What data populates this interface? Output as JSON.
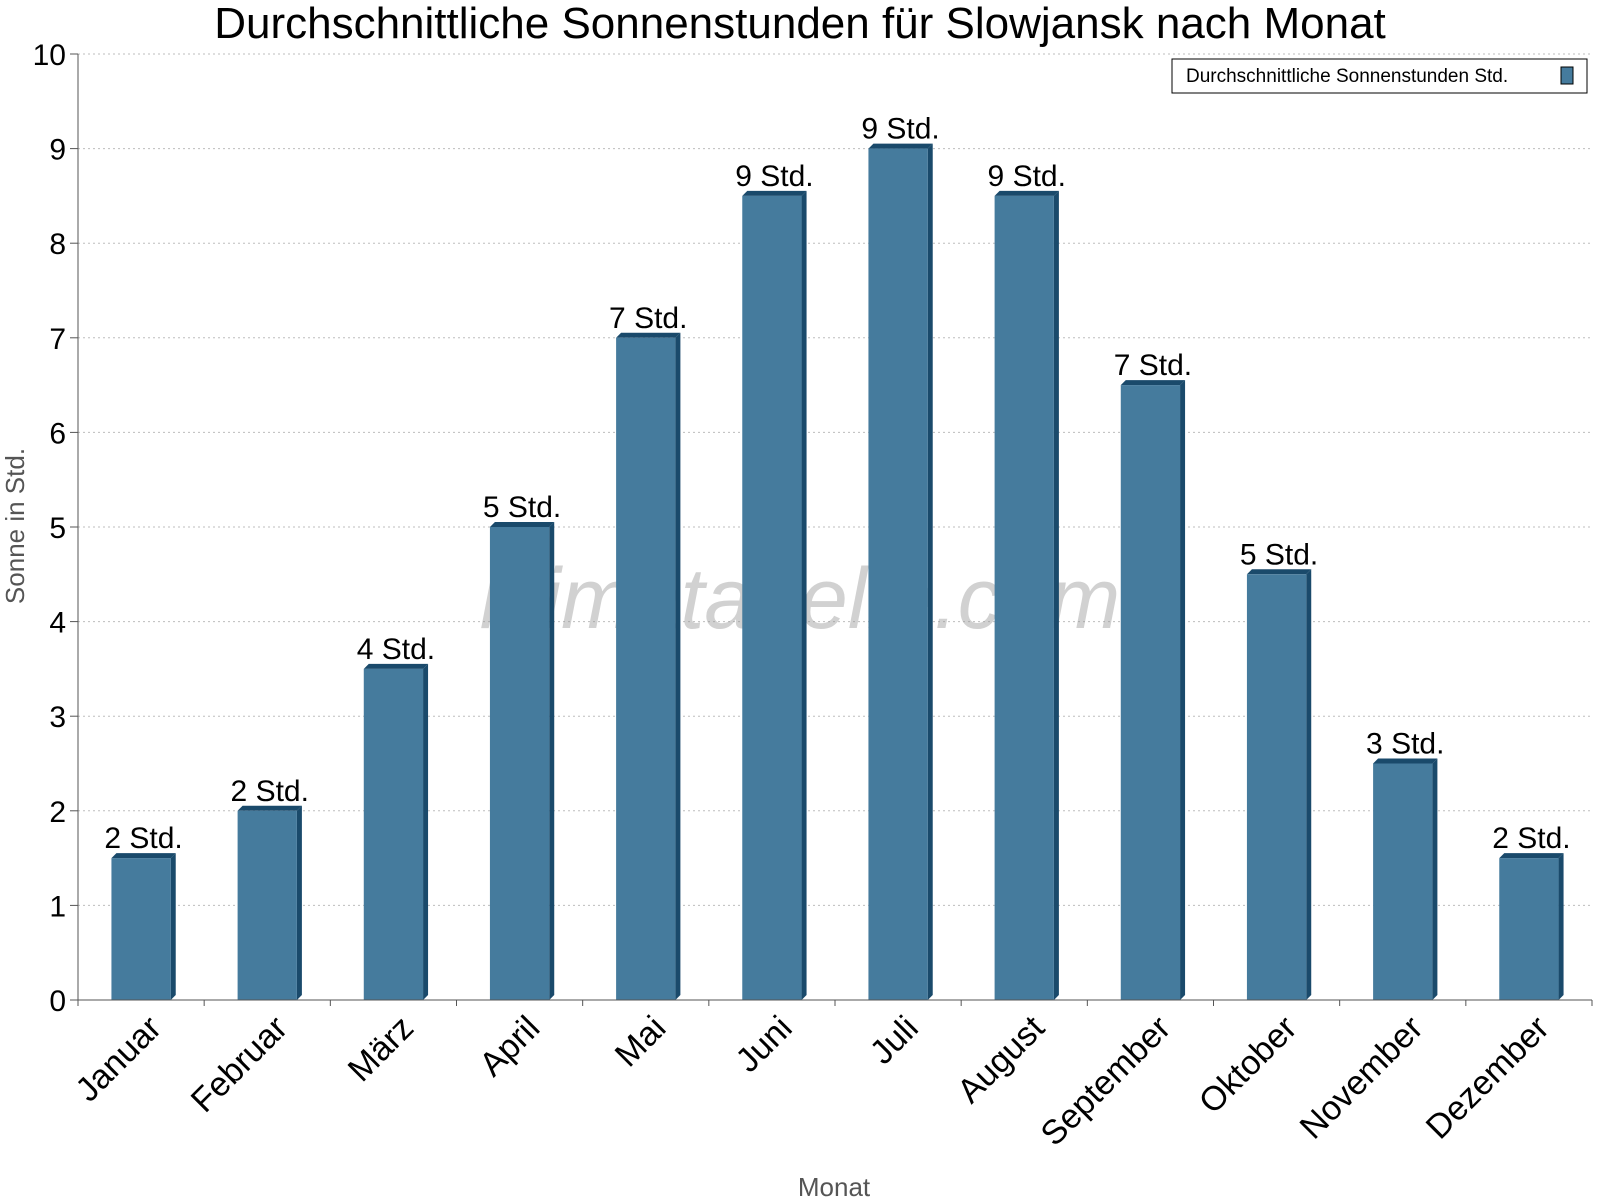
{
  "chart_data": {
    "type": "bar",
    "title": "Durchschnittliche Sonnenstunden für Slowjansk nach Monat",
    "xlabel": "Monat",
    "ylabel": "Sonne in Std.",
    "ylim": [
      0,
      10
    ],
    "yticks": [
      "0",
      "1",
      "2",
      "3",
      "4",
      "5",
      "6",
      "7",
      "8",
      "9",
      "10"
    ],
    "grid": true,
    "legend_position": "top-right",
    "categories": [
      "Januar",
      "Februar",
      "März",
      "April",
      "Mai",
      "Juni",
      "Juli",
      "August",
      "September",
      "Oktober",
      "November",
      "Dezember"
    ],
    "series": [
      {
        "name": "Durchschnittliche Sonnenstunden Std.",
        "values": [
          1.5,
          2,
          3.5,
          5,
          7,
          8.5,
          9,
          8.5,
          6.5,
          4.5,
          2.5,
          1.5
        ],
        "labels": [
          "2 Std.",
          "2 Std.",
          "4 Std.",
          "5 Std.",
          "7 Std.",
          "9 Std.",
          "9 Std.",
          "9 Std.",
          "7 Std.",
          "5 Std.",
          "3 Std.",
          "2 Std."
        ],
        "color": "#457b9d",
        "side_color": "#1a4a6b"
      }
    ],
    "watermark": "klimatabelle.com"
  }
}
